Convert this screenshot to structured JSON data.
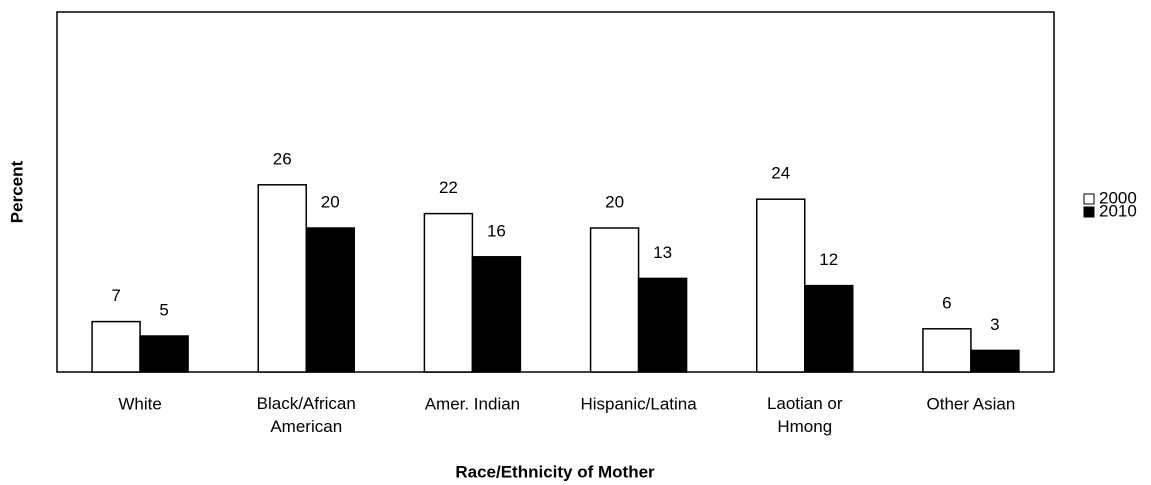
{
  "chart_data": {
    "type": "bar",
    "x_label": "Race/Ethnicity of Mother",
    "y_label": "Percent",
    "categories": [
      "White",
      "Black/African\nAmerican",
      "Amer. Indian",
      "Hispanic/Latina",
      "Laotian or\nHmong",
      "Other Asian"
    ],
    "series": [
      {
        "name": "2000",
        "color": "#ffffff",
        "values": [
          7,
          26,
          22,
          20,
          24,
          6
        ]
      },
      {
        "name": "2010",
        "color": "#000000",
        "values": [
          5,
          20,
          16,
          13,
          12,
          3
        ]
      }
    ],
    "ylim": [
      0,
      50
    ],
    "legend": "right"
  }
}
